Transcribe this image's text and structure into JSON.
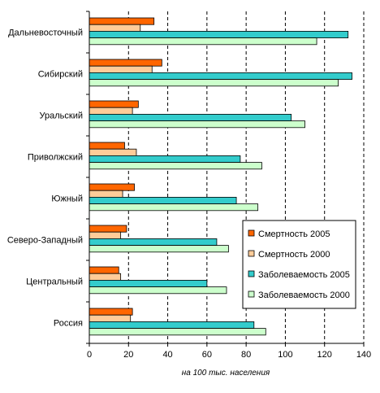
{
  "chart_data": {
    "type": "bar",
    "orientation": "horizontal",
    "categories": [
      "Дальневосточный",
      "Сибирский",
      "Уральский",
      "Приволжский",
      "Южный",
      "Северо-Западный",
      "Центральный",
      "Россия"
    ],
    "series": [
      {
        "name": "Смертность 2005",
        "color": "#ff6600",
        "values": [
          33,
          37,
          25,
          18,
          23,
          19,
          15,
          22
        ]
      },
      {
        "name": "Смертность 2000",
        "color": "#ffcc99",
        "values": [
          26,
          32,
          22,
          24,
          17,
          16,
          16,
          21
        ]
      },
      {
        "name": "Заболеваемость 2005",
        "color": "#33cccc",
        "values": [
          132,
          134,
          103,
          77,
          75,
          65,
          60,
          84
        ]
      },
      {
        "name": "Заболеваемость 2000",
        "color": "#ccffcc",
        "values": [
          116,
          127,
          110,
          88,
          86,
          71,
          70,
          90
        ]
      }
    ],
    "xlim": [
      0,
      140
    ],
    "xticks": [
      0,
      20,
      40,
      60,
      80,
      100,
      120,
      140
    ],
    "xlabel": "на 100 тыс. населения",
    "grid": "vertical dashed",
    "legend_position": "right"
  }
}
